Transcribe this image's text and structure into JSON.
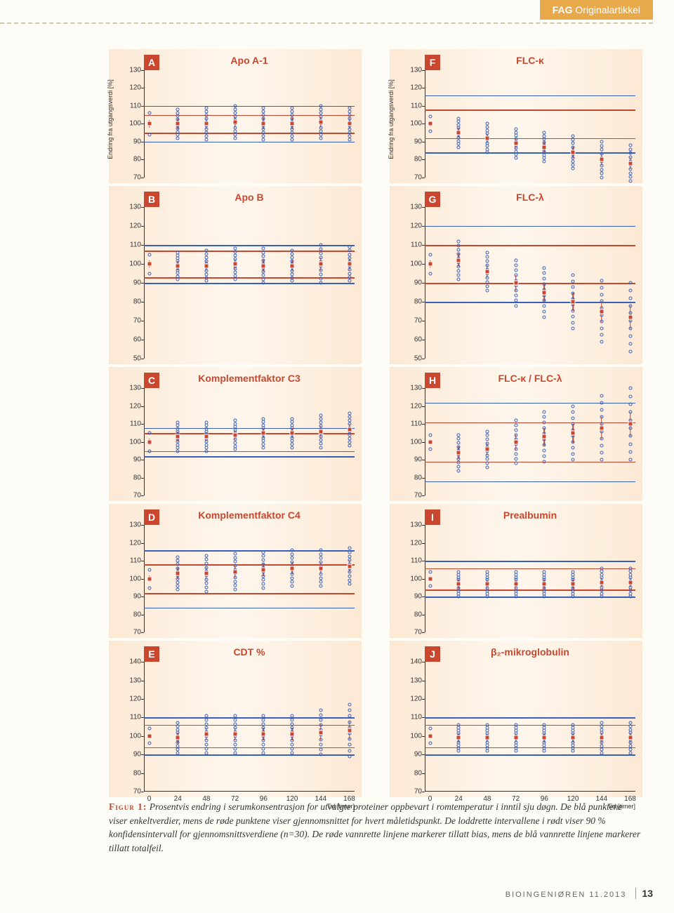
{
  "header": {
    "category": "FAG",
    "type": "Originalartikkel"
  },
  "figure": {
    "y_axis_label": "Endring fra utgangsverdi [%]",
    "x_axis_label": "Tid [timer]",
    "x_ticks": [
      0,
      24,
      48,
      72,
      96,
      120,
      144,
      168
    ],
    "colors": {
      "red": "#c8472e",
      "blue": "#3a5fb8",
      "panel_bg_edge": "#fce9d5",
      "panel_bg_mid": "#fef7ed"
    },
    "panels": [
      {
        "letter": "A",
        "title": "Apo A-1",
        "y_ticks": [
          70,
          80,
          90,
          100,
          110,
          120,
          130
        ],
        "blue_lines": [
          90,
          110
        ],
        "red_lines": [
          95,
          105
        ],
        "mean": [
          100,
          100,
          100,
          101,
          100,
          100,
          101,
          100
        ],
        "scatter_range": [
          6,
          8,
          9,
          9,
          9,
          9,
          9,
          9
        ]
      },
      {
        "letter": "B",
        "title": "Apo B",
        "y_ticks": [
          50,
          60,
          70,
          80,
          90,
          100,
          110,
          120,
          130
        ],
        "blue_lines": [
          90,
          110
        ],
        "red_lines": [
          93,
          107
        ],
        "mean": [
          100,
          99,
          99,
          100,
          99,
          99,
          100,
          100
        ],
        "scatter_range": [
          5,
          7,
          8,
          8,
          9,
          8,
          10,
          9
        ]
      },
      {
        "letter": "C",
        "title": "Komplementfaktor C3",
        "y_ticks": [
          70,
          80,
          90,
          100,
          110,
          120,
          130
        ],
        "blue_lines": [
          92,
          108
        ],
        "red_lines": [
          95,
          105
        ],
        "mean": [
          100,
          103,
          103,
          104,
          105,
          105,
          106,
          107
        ],
        "scatter_range": [
          5,
          8,
          8,
          8,
          8,
          8,
          9,
          9
        ]
      },
      {
        "letter": "D",
        "title": "Komplementfaktor C4",
        "y_ticks": [
          70,
          80,
          90,
          100,
          110,
          120,
          130
        ],
        "blue_lines": [
          84,
          116
        ],
        "red_lines": [
          92,
          108
        ],
        "mean": [
          100,
          103,
          103,
          104,
          105,
          106,
          106,
          107
        ],
        "scatter_range": [
          5,
          9,
          10,
          10,
          10,
          10,
          10,
          10
        ]
      },
      {
        "letter": "E",
        "title": "CDT %",
        "y_ticks": [
          70,
          80,
          90,
          100,
          110,
          120,
          130,
          140
        ],
        "blue_lines": [
          90,
          110
        ],
        "red_lines": [
          94,
          106
        ],
        "mean": [
          100,
          99,
          101,
          101,
          101,
          101,
          102,
          103
        ],
        "scatter_range": [
          4,
          8,
          10,
          10,
          10,
          10,
          12,
          14
        ],
        "show_x_axis": true
      },
      {
        "letter": "F",
        "title": "FLC-κ",
        "y_ticks": [
          70,
          80,
          90,
          100,
          110,
          120,
          130
        ],
        "blue_lines": [
          84,
          116
        ],
        "red_lines": [
          92,
          108
        ],
        "mean": [
          100,
          95,
          92,
          89,
          87,
          84,
          80,
          78
        ],
        "scatter_range": [
          4,
          8,
          8,
          8,
          8,
          9,
          10,
          10
        ]
      },
      {
        "letter": "G",
        "title": "FLC-λ",
        "y_ticks": [
          50,
          60,
          70,
          80,
          90,
          100,
          110,
          120,
          130
        ],
        "blue_lines": [
          80,
          120
        ],
        "red_lines": [
          90,
          110
        ],
        "mean": [
          100,
          102,
          96,
          90,
          85,
          80,
          75,
          72
        ],
        "scatter_range": [
          5,
          10,
          10,
          12,
          13,
          14,
          16,
          18
        ]
      },
      {
        "letter": "H",
        "title": "FLC-κ / FLC-λ",
        "y_ticks": [
          70,
          80,
          90,
          100,
          110,
          120,
          130
        ],
        "blue_lines": [
          78,
          122
        ],
        "red_lines": [
          89,
          111
        ],
        "mean": [
          100,
          94,
          96,
          100,
          103,
          105,
          108,
          110
        ],
        "scatter_range": [
          4,
          10,
          10,
          12,
          14,
          15,
          18,
          20
        ]
      },
      {
        "letter": "I",
        "title": "Prealbumin",
        "y_ticks": [
          70,
          80,
          90,
          100,
          110,
          120,
          130
        ],
        "blue_lines": [
          90,
          110
        ],
        "red_lines": [
          94,
          106
        ],
        "mean": [
          100,
          97,
          97,
          97,
          97,
          97,
          98,
          98
        ],
        "scatter_range": [
          4,
          7,
          7,
          7,
          7,
          7,
          8,
          8
        ]
      },
      {
        "letter": "J",
        "title": "β₂-mikroglobulin",
        "y_ticks": [
          70,
          80,
          90,
          100,
          110,
          120,
          130,
          140
        ],
        "blue_lines": [
          90,
          110
        ],
        "red_lines": [
          94,
          106
        ],
        "mean": [
          100,
          99,
          99,
          99,
          99,
          99,
          99,
          99
        ],
        "scatter_range": [
          4,
          7,
          7,
          7,
          7,
          7,
          8,
          8
        ],
        "show_x_axis": true
      }
    ]
  },
  "caption": {
    "label": "Figur 1:",
    "text": "Prosentvis endring i serumkonsentrasjon for utvalgte proteiner oppbevart i romtemperatur i inntil sju døgn. De blå punktene viser enkeltverdier, mens de røde punktene viser gjennomsnittet for hvert måletidspunkt. De loddrette intervallene i rødt viser 90 % konfidensintervall for gjennomsnittsverdiene (n=30). De røde vannrette linjene markerer tillatt bias, mens de blå vannrette linjene markerer tillatt totalfeil."
  },
  "footer": {
    "journal": "BIOINGENIØREN 11.2013",
    "page": "13"
  }
}
